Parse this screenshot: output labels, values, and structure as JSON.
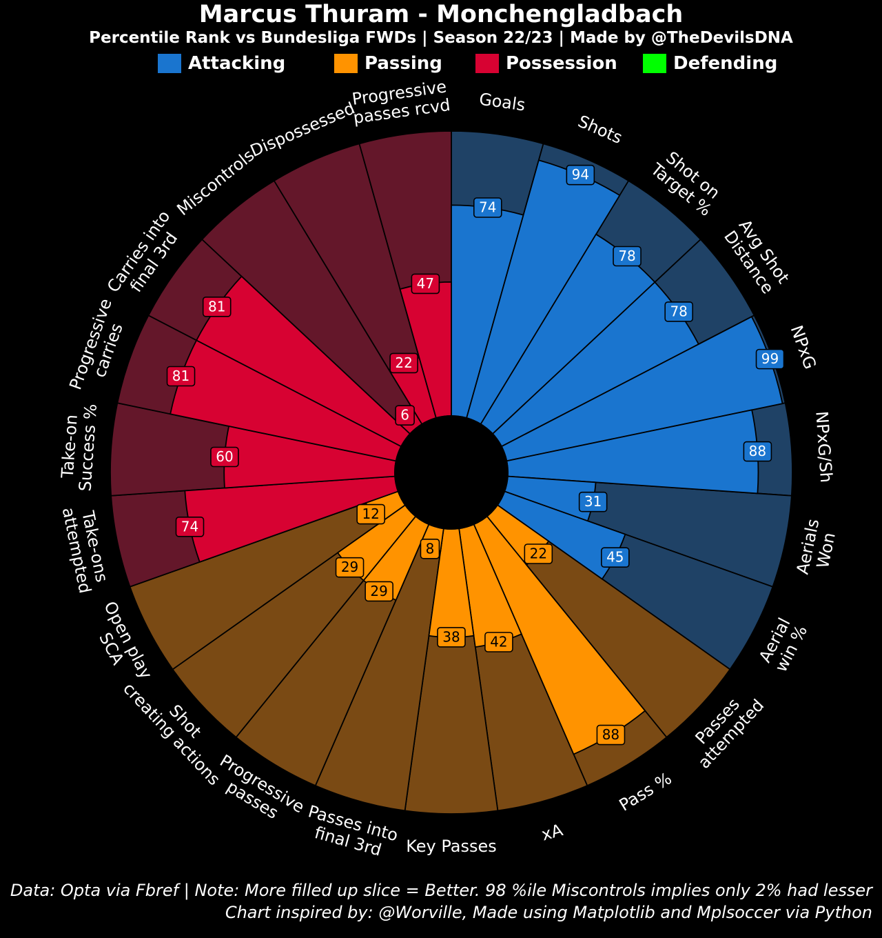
{
  "header": {
    "title": "Marcus Thuram - Monchengladbach",
    "subtitle": "Percentile Rank vs Bundesliga FWDs | Season 22/23 | Made by @TheDevilsDNA"
  },
  "legend": [
    {
      "label": "Attacking",
      "color": "#1a75cf"
    },
    {
      "label": "Passing",
      "color": "#ff9300"
    },
    {
      "label": "Possession",
      "color": "#d70232"
    },
    {
      "label": "Defending",
      "color": "#00ff00"
    }
  ],
  "colors": {
    "background": "#000000",
    "attacking_fill": "#1a75cf",
    "attacking_bg": "#1f4266",
    "passing_fill": "#ff9300",
    "passing_bg": "#7a4a14",
    "possession_fill": "#d70232",
    "possession_bg": "#64172a"
  },
  "chart_data": {
    "type": "pizza",
    "max": 100,
    "categories": [
      "Attacking",
      "Passing",
      "Possession"
    ],
    "params": [
      {
        "label": "Goals",
        "value": 74,
        "category": "Attacking"
      },
      {
        "label": "Shots",
        "value": 94,
        "category": "Attacking"
      },
      {
        "label": "Shot on\nTarget %",
        "value": 78,
        "category": "Attacking"
      },
      {
        "label": "Avg Shot\nDistance",
        "value": 78,
        "category": "Attacking"
      },
      {
        "label": "NPxG",
        "value": 99,
        "category": "Attacking"
      },
      {
        "label": "NPxG/Sh",
        "value": 88,
        "category": "Attacking"
      },
      {
        "label": "Aerials\nWon",
        "value": 31,
        "category": "Attacking"
      },
      {
        "label": "Aerial\nwin %",
        "value": 45,
        "category": "Attacking"
      },
      {
        "label": "Passes\nattempted",
        "value": 22,
        "category": "Passing"
      },
      {
        "label": "Pass %",
        "value": 88,
        "category": "Passing"
      },
      {
        "label": "xA",
        "value": 42,
        "category": "Passing"
      },
      {
        "label": "Key Passes",
        "value": 38,
        "category": "Passing"
      },
      {
        "label": "Passes into\nfinal 3rd",
        "value": 8,
        "category": "Passing"
      },
      {
        "label": "Progressive\npasses",
        "value": 29,
        "category": "Passing"
      },
      {
        "label": "Shot\ncreating actions",
        "value": 29,
        "category": "Passing"
      },
      {
        "label": "Open play\nSCA",
        "value": 12,
        "category": "Passing"
      },
      {
        "label": "Take-ons\nattempted",
        "value": 74,
        "category": "Possession"
      },
      {
        "label": "Take-on\nSuccess %",
        "value": 60,
        "category": "Possession"
      },
      {
        "label": "Progressive\ncarries",
        "value": 81,
        "category": "Possession"
      },
      {
        "label": "Carries into\nfinal 3rd",
        "value": 81,
        "category": "Possession"
      },
      {
        "label": "Miscontrols",
        "value": 6,
        "category": "Possession"
      },
      {
        "label": "Dispossessed",
        "value": 22,
        "category": "Possession"
      },
      {
        "label": "Progressive\npasses rcvd",
        "value": 47,
        "category": "Possession"
      }
    ]
  },
  "footer": {
    "line1": "Data: Opta via Fbref | Note: More filled up slice = Better. 98 %ile Miscontrols implies only 2% had lesser",
    "line2": "Chart inspired by: @Worville, Made using Matplotlib and Mplsoccer via Python"
  }
}
